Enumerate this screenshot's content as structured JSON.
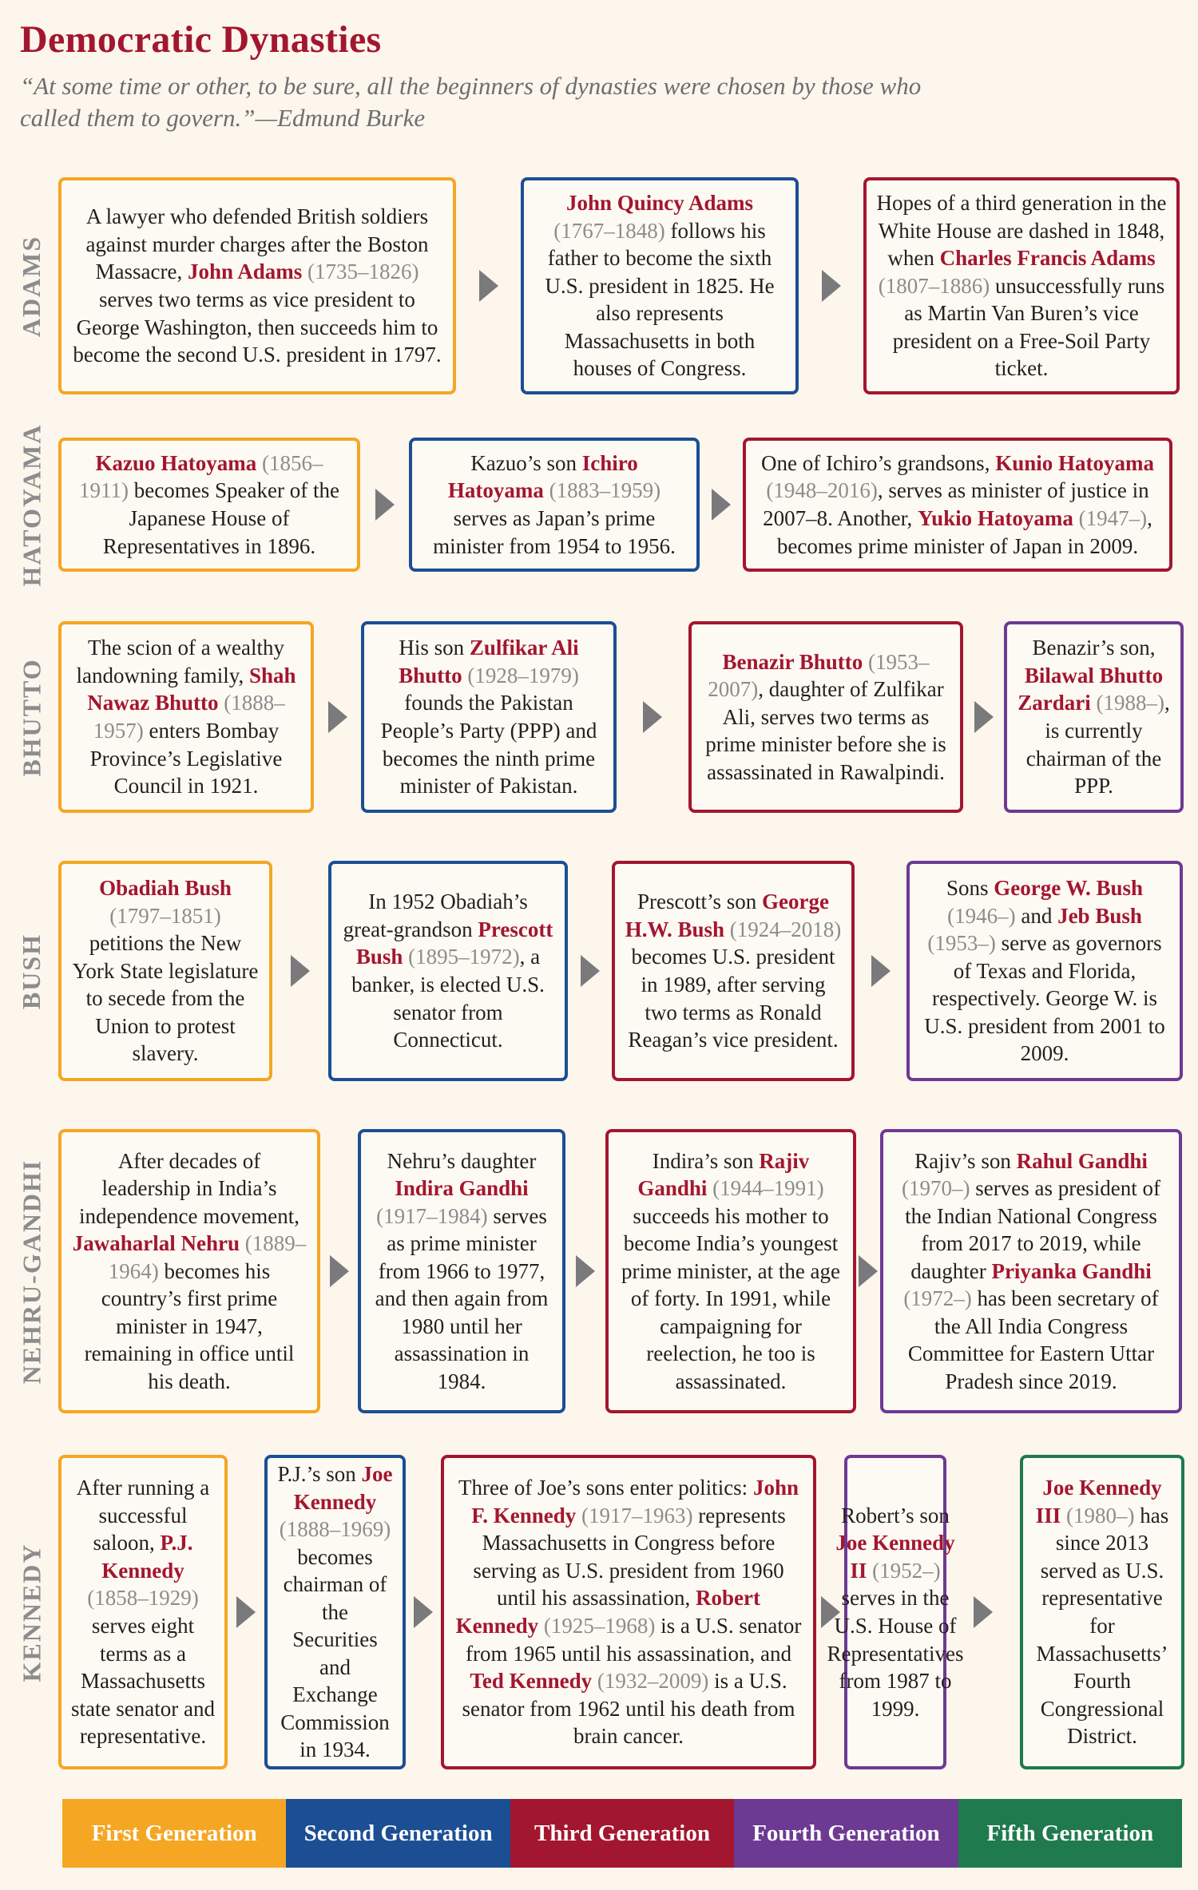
{
  "title": "Democratic Dynasties",
  "quote": "“At some time or other, to be sure, all the beginners of dynasties were chosen by those who called them to govern.”—Edmund Burke",
  "families": [
    {
      "name": "ADAMS",
      "boxes": [
        {
          "gen": 1,
          "parts": [
            {
              "t": "A lawyer who defended British soldiers against murder charges after the Boston Massacre, "
            },
            {
              "t": "John Adams",
              "c": "nm"
            },
            {
              "t": " (1735–1826)",
              "c": "yr"
            },
            {
              "t": " serves two terms as vice president to George Washington, then succeeds him to become the second U.S. president in 1797."
            }
          ]
        },
        {
          "gen": 2,
          "parts": [
            {
              "t": "John Quincy Adams",
              "c": "nm"
            },
            {
              "t": " (1767–1848)",
              "c": "yr"
            },
            {
              "t": " follows his father to become the sixth U.S. president in 1825. He also represents Massachusetts in both houses of Congress."
            }
          ]
        },
        {
          "gen": 3,
          "parts": [
            {
              "t": "Hopes of a third generation in the White House are dashed in 1848, when "
            },
            {
              "t": "Charles Francis Adams",
              "c": "nm"
            },
            {
              "t": " (1807–1886)",
              "c": "yr"
            },
            {
              "t": " unsuccessfully runs as Martin Van Buren’s vice president on a Free-Soil Party ticket."
            }
          ]
        }
      ]
    },
    {
      "name": "HATOYAMA",
      "boxes": [
        {
          "gen": 1,
          "parts": [
            {
              "t": "Kazuo Hatoyama",
              "c": "nm"
            },
            {
              "t": " (1856–1911)",
              "c": "yr"
            },
            {
              "t": " becomes Speaker of the Japanese House of Representatives in 1896."
            }
          ]
        },
        {
          "gen": 2,
          "parts": [
            {
              "t": "Kazuo’s son "
            },
            {
              "t": "Ichiro Hatoyama",
              "c": "nm"
            },
            {
              "t": " (1883–1959)",
              "c": "yr"
            },
            {
              "t": " serves as Japan’s prime minister from 1954 to 1956."
            }
          ]
        },
        {
          "gen": 3,
          "parts": [
            {
              "t": "One of Ichiro’s grandsons, "
            },
            {
              "t": "Kunio Hatoyama",
              "c": "nm"
            },
            {
              "t": " (1948–2016)",
              "c": "yr"
            },
            {
              "t": ", serves as minister of justice in 2007–8. Another, "
            },
            {
              "t": "Yukio Hatoyama",
              "c": "nm"
            },
            {
              "t": " (1947–)",
              "c": "yr"
            },
            {
              "t": ", becomes prime minister of Japan in 2009."
            }
          ]
        }
      ]
    },
    {
      "name": "BHUTTO",
      "boxes": [
        {
          "gen": 1,
          "parts": [
            {
              "t": "The scion of a wealthy landowning family, "
            },
            {
              "t": "Shah Nawaz Bhutto",
              "c": "nm"
            },
            {
              "t": " (1888–1957)",
              "c": "yr"
            },
            {
              "t": " enters Bombay Province’s Legislative Council in 1921."
            }
          ]
        },
        {
          "gen": 2,
          "parts": [
            {
              "t": "His son "
            },
            {
              "t": "Zulfikar Ali Bhutto",
              "c": "nm"
            },
            {
              "t": " (1928–1979)",
              "c": "yr"
            },
            {
              "t": " founds the Pakistan People’s Party (PPP) and becomes the ninth prime minister of Pakistan."
            }
          ]
        },
        {
          "gen": 3,
          "parts": [
            {
              "t": "Benazir Bhutto",
              "c": "nm"
            },
            {
              "t": " (1953–2007)",
              "c": "yr"
            },
            {
              "t": ", daughter of Zulfikar Ali, serves two terms as prime minister before she is assassinated in Rawalpindi."
            }
          ]
        },
        {
          "gen": 4,
          "parts": [
            {
              "t": "Benazir’s son, "
            },
            {
              "t": "Bilawal Bhutto Zardari",
              "c": "nm"
            },
            {
              "t": " (1988–)",
              "c": "yr"
            },
            {
              "t": ", is currently chairman of the PPP."
            }
          ]
        }
      ]
    },
    {
      "name": "BUSH",
      "boxes": [
        {
          "gen": 1,
          "parts": [
            {
              "t": "Obadiah Bush",
              "c": "nm"
            },
            {
              "t": " (1797–1851)",
              "c": "yr"
            },
            {
              "t": " petitions the New York State legislature to secede from the Union to protest slavery."
            }
          ]
        },
        {
          "gen": 2,
          "parts": [
            {
              "t": "In 1952 Obadiah’s great-grandson "
            },
            {
              "t": "Prescott Bush",
              "c": "nm"
            },
            {
              "t": " (1895–1972)",
              "c": "yr"
            },
            {
              "t": ", a banker, is elected U.S. senator from Connecticut."
            }
          ]
        },
        {
          "gen": 3,
          "parts": [
            {
              "t": "Prescott’s son "
            },
            {
              "t": "George H.W. Bush",
              "c": "nm"
            },
            {
              "t": " (1924–2018)",
              "c": "yr"
            },
            {
              "t": " becomes U.S. president in 1989, after serving two terms as Ronald Reagan’s vice president."
            }
          ]
        },
        {
          "gen": 4,
          "parts": [
            {
              "t": "Sons "
            },
            {
              "t": "George W. Bush",
              "c": "nm"
            },
            {
              "t": " (1946–)",
              "c": "yr"
            },
            {
              "t": " and "
            },
            {
              "t": "Jeb Bush",
              "c": "nm"
            },
            {
              "t": " (1953–)",
              "c": "yr"
            },
            {
              "t": " serve as governors of Texas and Florida, respectively. George W. is U.S. president from 2001 to 2009."
            }
          ]
        }
      ]
    },
    {
      "name": "NEHRU-GANDHI",
      "boxes": [
        {
          "gen": 1,
          "parts": [
            {
              "t": "After decades of leadership in India’s independence movement, "
            },
            {
              "t": "Jawaharlal Nehru",
              "c": "nm"
            },
            {
              "t": " (1889–1964)",
              "c": "yr"
            },
            {
              "t": " becomes his country’s first prime minister in 1947, remaining in office until his death."
            }
          ]
        },
        {
          "gen": 2,
          "parts": [
            {
              "t": "Nehru’s daughter "
            },
            {
              "t": "Indira Gandhi",
              "c": "nm"
            },
            {
              "t": " (1917–1984)",
              "c": "yr"
            },
            {
              "t": " serves as prime minister from 1966 to 1977, and then again from 1980 until her assassination in 1984."
            }
          ]
        },
        {
          "gen": 3,
          "parts": [
            {
              "t": "Indira’s son "
            },
            {
              "t": "Rajiv Gandhi",
              "c": "nm"
            },
            {
              "t": " (1944–1991)",
              "c": "yr"
            },
            {
              "t": " succeeds his mother to become India’s youngest prime minister, at the age of forty. In 1991, while campaigning for reelection, he too is assassinated."
            }
          ]
        },
        {
          "gen": 4,
          "parts": [
            {
              "t": "Rajiv’s son "
            },
            {
              "t": "Rahul Gandhi",
              "c": "nm"
            },
            {
              "t": " (1970–)",
              "c": "yr"
            },
            {
              "t": " serves as president of the Indian National Congress from 2017 to 2019, while daughter "
            },
            {
              "t": "Priyanka Gandhi",
              "c": "nm"
            },
            {
              "t": " (1972–)",
              "c": "yr"
            },
            {
              "t": " has been secretary of the All India Congress Committee for Eastern Uttar Pradesh since 2019."
            }
          ]
        }
      ]
    },
    {
      "name": "KENNEDY",
      "boxes": [
        {
          "gen": 1,
          "parts": [
            {
              "t": "After running a successful saloon, "
            },
            {
              "t": "P.J. Kennedy",
              "c": "nm"
            },
            {
              "t": " (1858–1929)",
              "c": "yr"
            },
            {
              "t": " serves eight terms as a Massachusetts state senator and representative."
            }
          ]
        },
        {
          "gen": 2,
          "parts": [
            {
              "t": "P.J.’s son "
            },
            {
              "t": "Joe Kennedy",
              "c": "nm"
            },
            {
              "t": " (1888–1969)",
              "c": "yr"
            },
            {
              "t": " becomes chairman of the Securities and Exchange Commission in 1934."
            }
          ]
        },
        {
          "gen": 3,
          "parts": [
            {
              "t": "Three of Joe’s sons enter politics: "
            },
            {
              "t": "John F. Kennedy",
              "c": "nm"
            },
            {
              "t": " (1917–1963)",
              "c": "yr"
            },
            {
              "t": " represents Massachusetts in Congress before serving as U.S. president from 1960 until his assassination, "
            },
            {
              "t": "Robert Kennedy",
              "c": "nm"
            },
            {
              "t": " (1925–1968)",
              "c": "yr"
            },
            {
              "t": " is a U.S. senator from 1965 until his assassination, and "
            },
            {
              "t": "Ted Kennedy",
              "c": "nm"
            },
            {
              "t": " (1932–2009)",
              "c": "yr"
            },
            {
              "t": " is a U.S. senator from 1962 until his death from brain cancer."
            }
          ]
        },
        {
          "gen": 4,
          "parts": [
            {
              "t": "Robert’s son "
            },
            {
              "t": "Joe Kennedy II",
              "c": "nm"
            },
            {
              "t": " (1952–)",
              "c": "yr"
            },
            {
              "t": " serves in the U.S. House of Representatives from 1987 to 1999."
            }
          ]
        },
        {
          "gen": 5,
          "parts": [
            {
              "t": "Joe Kennedy III",
              "c": "nm"
            },
            {
              "t": " (1980–)",
              "c": "yr"
            },
            {
              "t": " has since 2013 served as U.S. representative for Massachusetts’ Fourth Congressional District."
            }
          ]
        }
      ]
    }
  ],
  "legend": [
    {
      "label": "First Generation",
      "color": "#f5a623"
    },
    {
      "label": "Second Generation",
      "color": "#1c4e94"
    },
    {
      "label": "Third Generation",
      "color": "#a3162f"
    },
    {
      "label": "Fourth Generation",
      "color": "#6d3a93"
    },
    {
      "label": "Fifth Generation",
      "color": "#1f7a4d"
    }
  ]
}
